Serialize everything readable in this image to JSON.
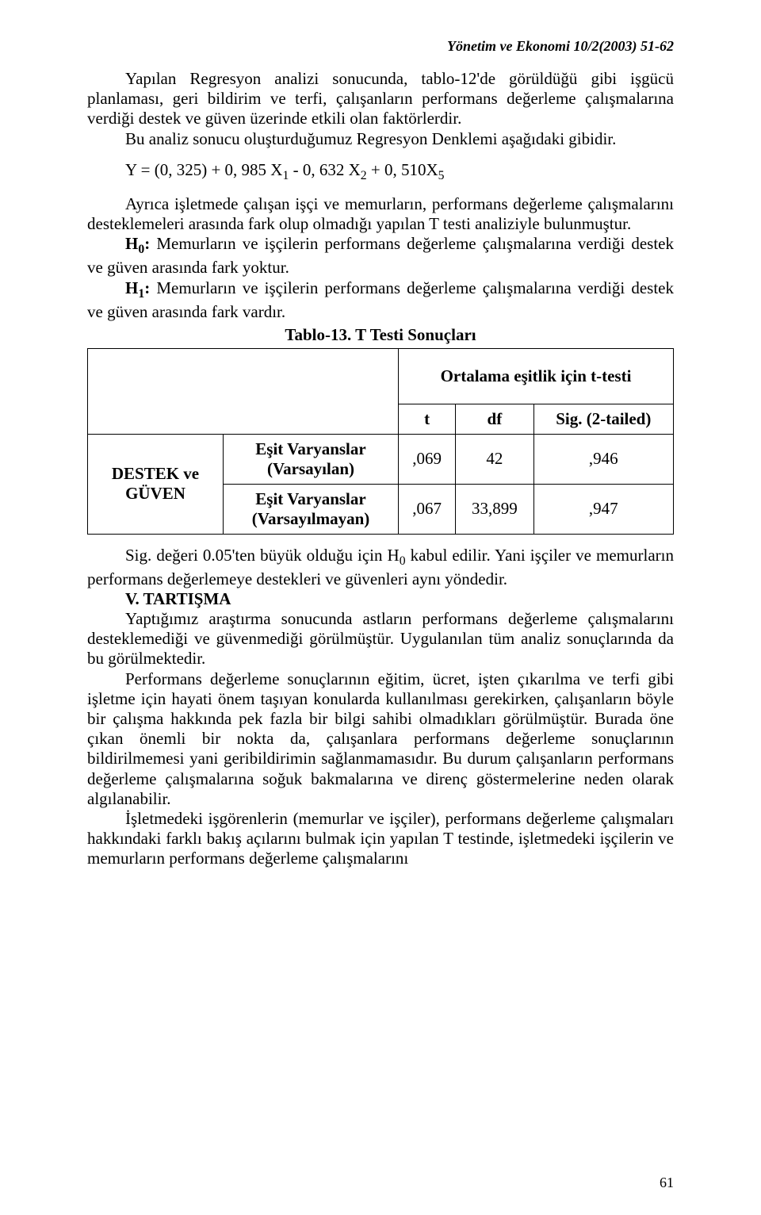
{
  "header": {
    "journal_ref": "Yönetim ve Ekonomi 10/2(2003) 51-62"
  },
  "body": {
    "p1": "Yapılan Regresyon analizi sonucunda, tablo-12'de görüldüğü gibi işgücü planlaması, geri bildirim ve terfi, çalışanların performans değerleme çalışmalarına verdiği destek ve güven üzerinde etkili olan faktörlerdir.",
    "p2": "Bu analiz sonucu oluşturduğumuz Regresyon Denklemi aşağıdaki gibidir.",
    "equation_html": "Y = (0, 325) + 0, 985 X<sub>1</sub> - 0, 632 X<sub>2</sub> + 0, 510X<sub>5</sub>",
    "p3": "Ayrıca işletmede çalışan işçi ve memurların, performans değerleme çalışmalarını desteklemeleri arasında fark olup olmadığı yapılan T testi analiziyle bulunmuştur.",
    "h0_label_html": "<b>H<sub>0</sub>:</b> ",
    "h0_text": "Memurların ve işçilerin performans değerleme çalışmalarına verdiği destek  ve güven arasında fark yoktur.",
    "h1_label_html": "<b>H<sub>1</sub>:</b> ",
    "h1_text": "Memurların ve işçilerin performans değerleme çalışmalarına verdiği destek  ve güven arasında fark vardır.",
    "table_title": "Tablo-13. T Testi Sonuçları",
    "p4_html": "Sig. değeri 0.05'ten büyük olduğu için H<sub>0</sub> kabul edilir. Yani işçiler ve memurların performans değerlemeye destekleri ve güvenleri aynı yöndedir.",
    "section_heading": "V. TARTIŞMA",
    "p5": "Yaptığımız araştırma sonucunda astların performans değerleme çalışmalarını desteklemediği ve güvenmediği görülmüştür. Uygulanılan tüm analiz sonuçlarında da bu görülmektedir.",
    "p6": "Performans değerleme sonuçlarının eğitim, ücret, işten çıkarılma ve terfi gibi işletme için hayati önem taşıyan konularda kullanılması gerekirken, çalışanların böyle bir çalışma hakkında pek fazla bir bilgi sahibi olmadıkları görülmüştür. Burada öne çıkan önemli bir nokta da, çalışanlara  performans değerleme sonuçlarının bildirilmemesi yani geribildirimin sağlanmamasıdır. Bu durum çalışanların performans değerleme çalışmalarına soğuk bakmalarına  ve direnç göstermelerine neden olarak algılanabilir.",
    "p7": "İşletmedeki işgörenlerin (memurlar ve işçiler), performans değerleme çalışmaları hakkındaki farklı bakış açılarını bulmak için yapılan T testinde, işletmedeki işçilerin ve memurların performans değerleme çalışmalarını"
  },
  "table": {
    "super_header": "Ortalama eşitlik için t-testi",
    "columns": [
      "t",
      "df",
      "Sig. (2-tailed)"
    ],
    "row_label": "DESTEK ve GÜVEN",
    "rows": [
      {
        "variance": "Eşit Varyanslar (Varsayılan)",
        "t": ",069",
        "df": "42",
        "sig": ",946"
      },
      {
        "variance": "Eşit Varyanslar (Varsayılmayan)",
        "t": ",067",
        "df": "33,899",
        "sig": ",947"
      }
    ]
  },
  "page_number": "61"
}
